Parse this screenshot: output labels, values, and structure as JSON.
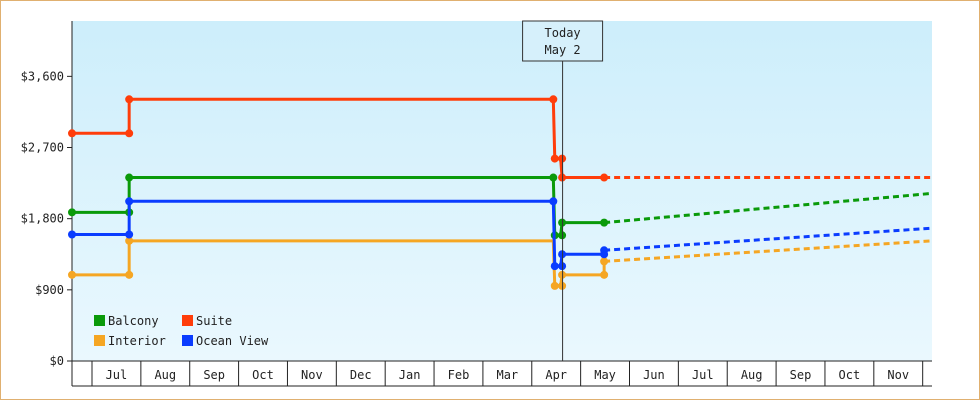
{
  "chart_data": {
    "type": "line",
    "step": true,
    "title": "",
    "xlabel": "",
    "ylabel": "",
    "ylim": [
      0,
      4300
    ],
    "y_ticks": [
      {
        "value": 0,
        "label": "$0"
      },
      {
        "value": 900,
        "label": "$900"
      },
      {
        "value": 1800,
        "label": "$1,800"
      },
      {
        "value": 2700,
        "label": "$2,700"
      },
      {
        "value": 3600,
        "label": "$3,600"
      }
    ],
    "x_domain": [
      0,
      17.6
    ],
    "month_ticks": [
      "Jul",
      "Aug",
      "Sep",
      "Oct",
      "Nov",
      "Dec",
      "Jan",
      "Feb",
      "Mar",
      "Apr",
      "May",
      "Jun",
      "Jul",
      "Aug",
      "Sep",
      "Oct",
      "Nov"
    ],
    "today": {
      "line1": "Today",
      "line2": "May 2",
      "x": 10.04
    },
    "grid": false,
    "legend_position": "bottom-left",
    "series": [
      {
        "name": "Balcony",
        "color": "#0a9a0a",
        "history": [
          [
            0,
            1880
          ],
          [
            1.17,
            1880
          ],
          [
            1.17,
            2320
          ],
          [
            9.85,
            2320
          ],
          [
            9.88,
            1590
          ],
          [
            10.0,
            1590
          ],
          [
            10.03,
            1750
          ],
          [
            10.89,
            1750
          ]
        ],
        "markers": [
          [
            0,
            1880
          ],
          [
            1.17,
            1880
          ],
          [
            1.17,
            2320
          ],
          [
            9.85,
            2320
          ],
          [
            9.88,
            1590
          ],
          [
            10.03,
            1590
          ],
          [
            10.03,
            1750
          ],
          [
            10.89,
            1750
          ]
        ],
        "forecast": [
          [
            10.89,
            1750
          ],
          [
            17.6,
            2120
          ]
        ]
      },
      {
        "name": "Suite",
        "color": "#ff3d0a",
        "history": [
          [
            0,
            2880
          ],
          [
            1.17,
            2880
          ],
          [
            1.17,
            3310
          ],
          [
            9.85,
            3310
          ],
          [
            9.88,
            2560
          ],
          [
            10.0,
            2560
          ],
          [
            10.03,
            2320
          ],
          [
            10.89,
            2320
          ]
        ],
        "markers": [
          [
            0,
            2880
          ],
          [
            1.17,
            2880
          ],
          [
            1.17,
            3310
          ],
          [
            9.85,
            3310
          ],
          [
            9.88,
            2560
          ],
          [
            10.03,
            2560
          ],
          [
            10.03,
            2320
          ],
          [
            10.89,
            2320
          ]
        ],
        "forecast": [
          [
            10.89,
            2320
          ],
          [
            17.6,
            2320
          ]
        ]
      },
      {
        "name": "Interior",
        "color": "#f5a623",
        "history": [
          [
            0,
            1090
          ],
          [
            1.17,
            1090
          ],
          [
            1.17,
            1520
          ],
          [
            9.85,
            1520
          ],
          [
            9.88,
            950
          ],
          [
            10.0,
            950
          ],
          [
            10.03,
            1090
          ],
          [
            10.89,
            1090
          ],
          [
            10.89,
            1260
          ]
        ],
        "markers": [
          [
            0,
            1090
          ],
          [
            1.17,
            1090
          ],
          [
            1.17,
            1520
          ],
          [
            9.88,
            950
          ],
          [
            10.03,
            950
          ],
          [
            10.03,
            1090
          ],
          [
            10.89,
            1090
          ],
          [
            10.89,
            1260
          ]
        ],
        "forecast": [
          [
            10.89,
            1260
          ],
          [
            17.6,
            1520
          ]
        ]
      },
      {
        "name": "Ocean View",
        "color": "#0a3cff",
        "history": [
          [
            0,
            1600
          ],
          [
            1.17,
            1600
          ],
          [
            1.17,
            2020
          ],
          [
            9.85,
            2020
          ],
          [
            9.88,
            1200
          ],
          [
            10.0,
            1200
          ],
          [
            10.03,
            1350
          ],
          [
            10.89,
            1350
          ],
          [
            10.89,
            1400
          ]
        ],
        "markers": [
          [
            0,
            1600
          ],
          [
            1.17,
            1600
          ],
          [
            1.17,
            2020
          ],
          [
            9.85,
            2020
          ],
          [
            9.88,
            1200
          ],
          [
            10.03,
            1200
          ],
          [
            10.03,
            1350
          ],
          [
            10.89,
            1350
          ],
          [
            10.89,
            1400
          ]
        ],
        "forecast": [
          [
            10.89,
            1400
          ],
          [
            17.6,
            1680
          ]
        ]
      }
    ]
  }
}
